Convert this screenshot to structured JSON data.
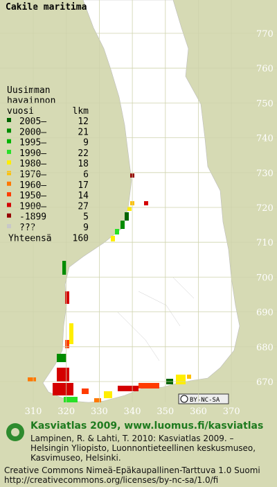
{
  "title": "Cakile maritima",
  "legend": {
    "heading": [
      "Uusimman",
      "havainnon"
    ],
    "col_headers": [
      "vuosi",
      "lkm"
    ],
    "rows": [
      {
        "label": "2005–",
        "count": 12,
        "color": "#006400"
      },
      {
        "label": "2000–",
        "count": 21,
        "color": "#008c00"
      },
      {
        "label": "1995–",
        "count": 9,
        "color": "#00b400"
      },
      {
        "label": "1990–",
        "count": 22,
        "color": "#28e028"
      },
      {
        "label": "1980–",
        "count": 18,
        "color": "#ffee00"
      },
      {
        "label": "1970–",
        "count": 6,
        "color": "#ffc000"
      },
      {
        "label": "1960–",
        "count": 17,
        "color": "#ff7800"
      },
      {
        "label": "1950–",
        "count": 14,
        "color": "#ff3c00"
      },
      {
        "label": "1900–",
        "count": 27,
        "color": "#d40000"
      },
      {
        "label": "-1899",
        "count": 5,
        "color": "#960000"
      },
      {
        "label": "???",
        "count": 9,
        "color": "#c8c8c8"
      }
    ],
    "total": {
      "label": "Yhteensä",
      "count": 160
    }
  },
  "grid": {
    "x_labels": [
      310,
      320,
      330,
      340,
      350,
      360,
      370
    ],
    "y_labels": [
      770,
      760,
      750,
      740,
      730,
      720,
      710,
      700,
      690,
      680,
      670
    ]
  },
  "badge": "BY-NC-SA",
  "footer": {
    "site": "Kasviatlas 2009, www.luomus.fi/kasviatlas",
    "citation": [
      "Lampinen, R. & Lahti, T. 2010: Kasviatlas 2009. –",
      "Helsingin Yliopisto, Luonnontieteellinen keskusmuseo,",
      "Kasvimuseo, Helsinki."
    ],
    "license": [
      "Creative Commons Nimeä-Epäkaupallinen-Tarttuva 1.0 Suomi",
      "http://creativecommons.org/licenses/by-nc-sa/1.0/fi"
    ]
  }
}
